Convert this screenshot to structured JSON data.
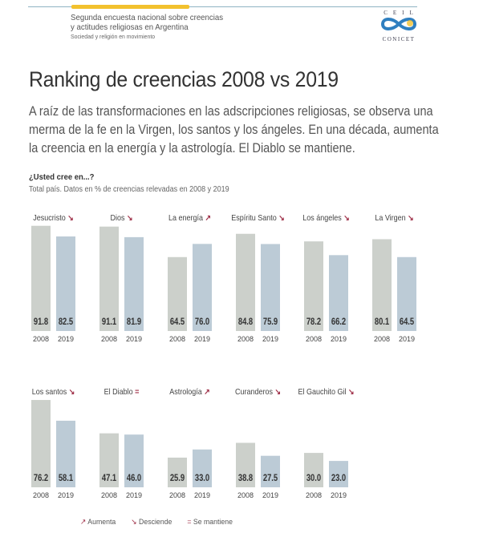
{
  "header": {
    "survey_line1": "Segunda encuesta nacional sobre creencias",
    "survey_line2": "y actitudes religiosas en Argentina",
    "survey_subtitle": "Sociedad y religión en movimiento",
    "logo_top": "CEIL",
    "logo_bottom": "CONICET"
  },
  "title": "Ranking de creencias 2008 vs 2019",
  "lead": [
    "A raíz de las transformaciones en las adscripciones religiosas, se observa una",
    "merma de la fe en la Virgen, los santos y los ángeles. En una década, aumenta",
    "la creencia en la energía y la astrología. El Diablo se mantiene."
  ],
  "question": "¿Usted cree en...?",
  "question_sub": "Total país. Datos en % de creencias relevadas en 2008 y 2019",
  "colors": {
    "bar_2008": "#ccd0cb",
    "bar_2019": "#bccbd6",
    "trend_arrow": "#a0324a",
    "value_text": "#333333"
  },
  "trend_symbols": {
    "up": "↗",
    "down": "↘",
    "same": "="
  },
  "legend": [
    {
      "symbol": "↗",
      "label": "Aumenta"
    },
    {
      "symbol": "↘",
      "label": "Desciende"
    },
    {
      "symbol": "=",
      "label": "Se mantiene"
    }
  ],
  "chart_data": {
    "type": "bar",
    "title": "Ranking de creencias 2008 vs 2019",
    "ylabel": "% de creencias",
    "ylim": [
      0,
      100
    ],
    "grid": false,
    "series_names": [
      "2008",
      "2019"
    ],
    "categories": [
      "Jesucristo",
      "Dios",
      "La energía",
      "Espíritu Santo",
      "Los ángeles",
      "La Virgen",
      "Los santos",
      "El Diablo",
      "Astrología",
      "Curanderos",
      "El Gauchito Gil"
    ],
    "trends": [
      "down",
      "down",
      "up",
      "down",
      "down",
      "down",
      "down",
      "same",
      "up",
      "down",
      "down"
    ],
    "series": [
      {
        "name": "2008",
        "values": [
          91.8,
          91.1,
          64.5,
          84.8,
          78.2,
          80.1,
          76.2,
          47.1,
          25.9,
          38.8,
          30.0
        ]
      },
      {
        "name": "2019",
        "values": [
          82.5,
          81.9,
          76.0,
          75.9,
          66.2,
          64.5,
          58.1,
          46.0,
          33.0,
          27.5,
          23.0
        ]
      }
    ],
    "value_labels": [
      [
        "91.8",
        "91.1",
        "64.5",
        "84.8",
        "78.2",
        "80.1",
        "76.2",
        "47.1",
        "25.9",
        "38.8",
        "30.0"
      ],
      [
        "82.5",
        "81.9",
        "76.0",
        "75.9",
        "66.2",
        "64.5",
        "58.1",
        "46.0",
        "33.0",
        "27.5",
        "23.0"
      ]
    ],
    "legend_position": "bottom-left"
  }
}
